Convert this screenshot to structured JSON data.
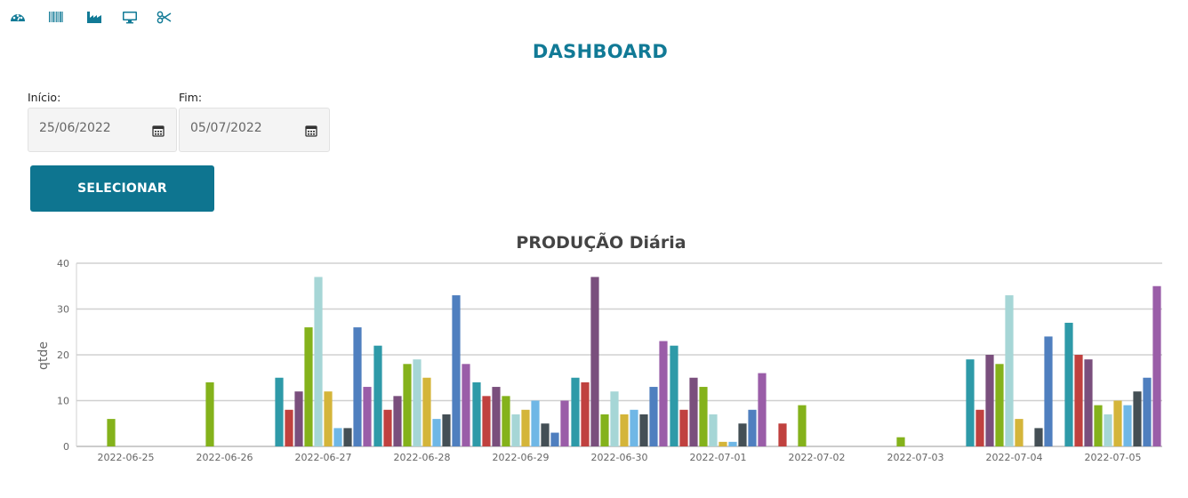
{
  "nav": {
    "icons": [
      "dashboard-icon",
      "barcode-icon",
      "factory-icon",
      "monitor-icon",
      "scissors-icon"
    ]
  },
  "page": {
    "title": "DASHBOARD"
  },
  "filters": {
    "start_label": "Início:",
    "start_value": "25/06/2022",
    "end_label": "Fim:",
    "end_value": "05/07/2022",
    "button_label": "SELECIONAR"
  },
  "colors": {
    "accent": "#0e7590",
    "title": "#117a96",
    "series": [
      "#2e9aa8",
      "#c0413f",
      "#7a4f7d",
      "#84b21b",
      "#a6d6d6",
      "#d4b53a",
      "#6fb7e6",
      "#444f55",
      "#4f7fbf",
      "#9a5da8"
    ]
  },
  "chart_data": {
    "type": "bar",
    "title": "PRODUÇÃO Diária",
    "xlabel": "",
    "ylabel": "qtde",
    "ylim": [
      0,
      40
    ],
    "yticks": [
      0,
      10,
      20,
      30,
      40
    ],
    "grid": true,
    "categories": [
      "2022-06-25",
      "2022-06-26",
      "2022-06-27",
      "2022-06-28",
      "2022-06-29",
      "2022-06-30",
      "2022-07-01",
      "2022-07-02",
      "2022-07-03",
      "2022-07-04",
      "2022-07-05"
    ],
    "series": [
      {
        "values": [
          0,
          0,
          15,
          22,
          14,
          15,
          22,
          0,
          0,
          19,
          27
        ]
      },
      {
        "values": [
          0,
          0,
          8,
          8,
          11,
          14,
          8,
          5,
          0,
          8,
          20
        ]
      },
      {
        "values": [
          0,
          0,
          12,
          11,
          13,
          37,
          15,
          0,
          0,
          20,
          19
        ]
      },
      {
        "values": [
          6,
          14,
          26,
          18,
          11,
          7,
          13,
          9,
          2,
          18,
          9
        ]
      },
      {
        "values": [
          0,
          0,
          37,
          19,
          7,
          12,
          7,
          0,
          0,
          33,
          7
        ]
      },
      {
        "values": [
          0,
          0,
          12,
          15,
          8,
          7,
          1,
          0,
          0,
          6,
          10
        ]
      },
      {
        "values": [
          0,
          0,
          4,
          6,
          10,
          8,
          1,
          0,
          0,
          0,
          9
        ]
      },
      {
        "values": [
          0,
          0,
          4,
          7,
          5,
          7,
          5,
          0,
          0,
          4,
          12
        ]
      },
      {
        "values": [
          0,
          0,
          26,
          33,
          3,
          13,
          8,
          0,
          0,
          24,
          15
        ]
      },
      {
        "values": [
          0,
          0,
          13,
          18,
          10,
          23,
          16,
          0,
          0,
          0,
          35
        ]
      }
    ]
  }
}
